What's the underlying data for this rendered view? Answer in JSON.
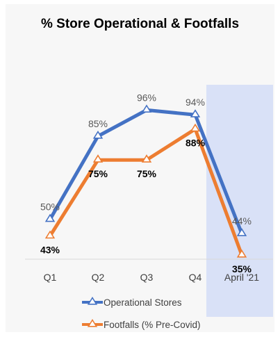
{
  "chart_data": {
    "type": "line",
    "title": "% Store Operational & Footfalls",
    "categories": [
      "Q1",
      "Q2",
      "Q3",
      "Q4",
      "April '21"
    ],
    "highlighted_category": "April '21",
    "highlight_color": "#d9e1f7",
    "series": [
      {
        "name": "Operational Stores",
        "values": [
          50,
          85,
          96,
          94,
          44
        ],
        "labels": [
          "50%",
          "85%",
          "96%",
          "94%",
          "44%"
        ],
        "color": "#4472c4",
        "label_position": "above"
      },
      {
        "name": "Footfalls (% Pre-Covid)",
        "values": [
          43,
          75,
          75,
          88,
          35
        ],
        "labels": [
          "43%",
          "75%",
          "75%",
          "88%",
          "35%"
        ],
        "color": "#ed7d31",
        "label_position": "below"
      }
    ],
    "marker": "triangle",
    "legend_position": "bottom",
    "grid": false
  }
}
